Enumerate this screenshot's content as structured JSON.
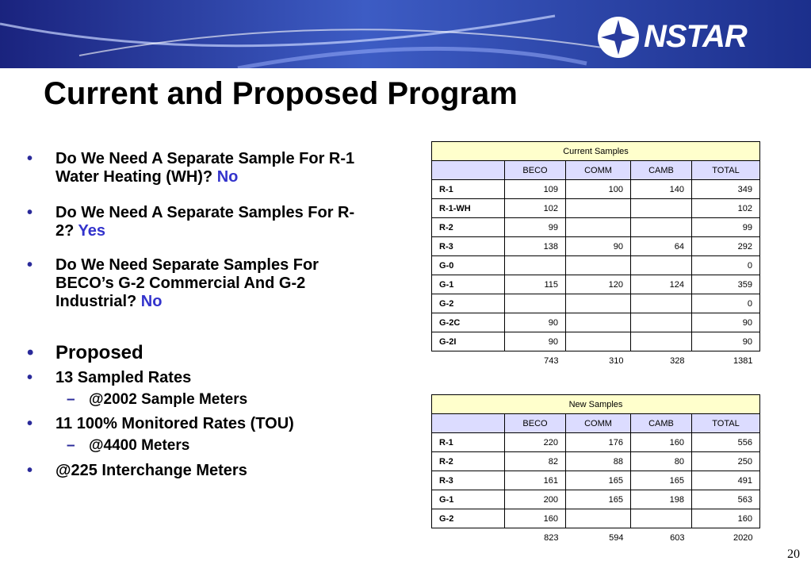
{
  "header": {
    "logo": "NSTAR"
  },
  "title": "Current and Proposed Program",
  "bullets": [
    {
      "text": "Do We Need A Separate Sample For R-1 Water Heating (WH)?",
      "answer": "No"
    },
    {
      "text": "Do We Need A Separate Samples For R-2?",
      "answer": "Yes"
    },
    {
      "text": "Do We Need Separate Samples For BECO’s G-2 Commercial And G-2 Industrial?",
      "answer": "No"
    },
    {
      "text": "Proposed"
    },
    {
      "text": "13 Sampled Rates",
      "sub": [
        "@2002 Sample Meters"
      ]
    },
    {
      "text": "11 100% Monitored Rates (TOU)",
      "sub": [
        "@4400 Meters"
      ]
    },
    {
      "text": "@225 Interchange Meters"
    }
  ],
  "tables": [
    {
      "caption": "Current Samples",
      "columns": [
        "BECO",
        "COMM",
        "CAMB",
        "TOTAL"
      ],
      "rows": [
        {
          "label": "R-1",
          "values": [
            109,
            100,
            140,
            349
          ]
        },
        {
          "label": "R-1-WH",
          "values": [
            102,
            null,
            null,
            102
          ]
        },
        {
          "label": "R-2",
          "values": [
            99,
            null,
            null,
            99
          ]
        },
        {
          "label": "R-3",
          "values": [
            138,
            90,
            64,
            292
          ]
        },
        {
          "label": "G-0",
          "values": [
            null,
            null,
            null,
            0
          ]
        },
        {
          "label": "G-1",
          "values": [
            115,
            120,
            124,
            359
          ]
        },
        {
          "label": "G-2",
          "values": [
            null,
            null,
            null,
            0
          ]
        },
        {
          "label": "G-2C",
          "values": [
            90,
            null,
            null,
            90
          ]
        },
        {
          "label": "G-2I",
          "values": [
            90,
            null,
            null,
            90
          ]
        }
      ],
      "totals": [
        743,
        310,
        328,
        1381
      ]
    },
    {
      "caption": "New Samples",
      "columns": [
        "BECO",
        "COMM",
        "CAMB",
        "TOTAL"
      ],
      "rows": [
        {
          "label": "R-1",
          "values": [
            220,
            176,
            160,
            556
          ]
        },
        {
          "label": "R-2",
          "values": [
            82,
            88,
            80,
            250
          ]
        },
        {
          "label": "R-3",
          "values": [
            161,
            165,
            165,
            491
          ]
        },
        {
          "label": "G-1",
          "values": [
            200,
            165,
            198,
            563
          ]
        },
        {
          "label": "G-2",
          "values": [
            160,
            null,
            null,
            160
          ]
        }
      ],
      "totals": [
        823,
        594,
        603,
        2020
      ]
    }
  ],
  "page_number": "20"
}
